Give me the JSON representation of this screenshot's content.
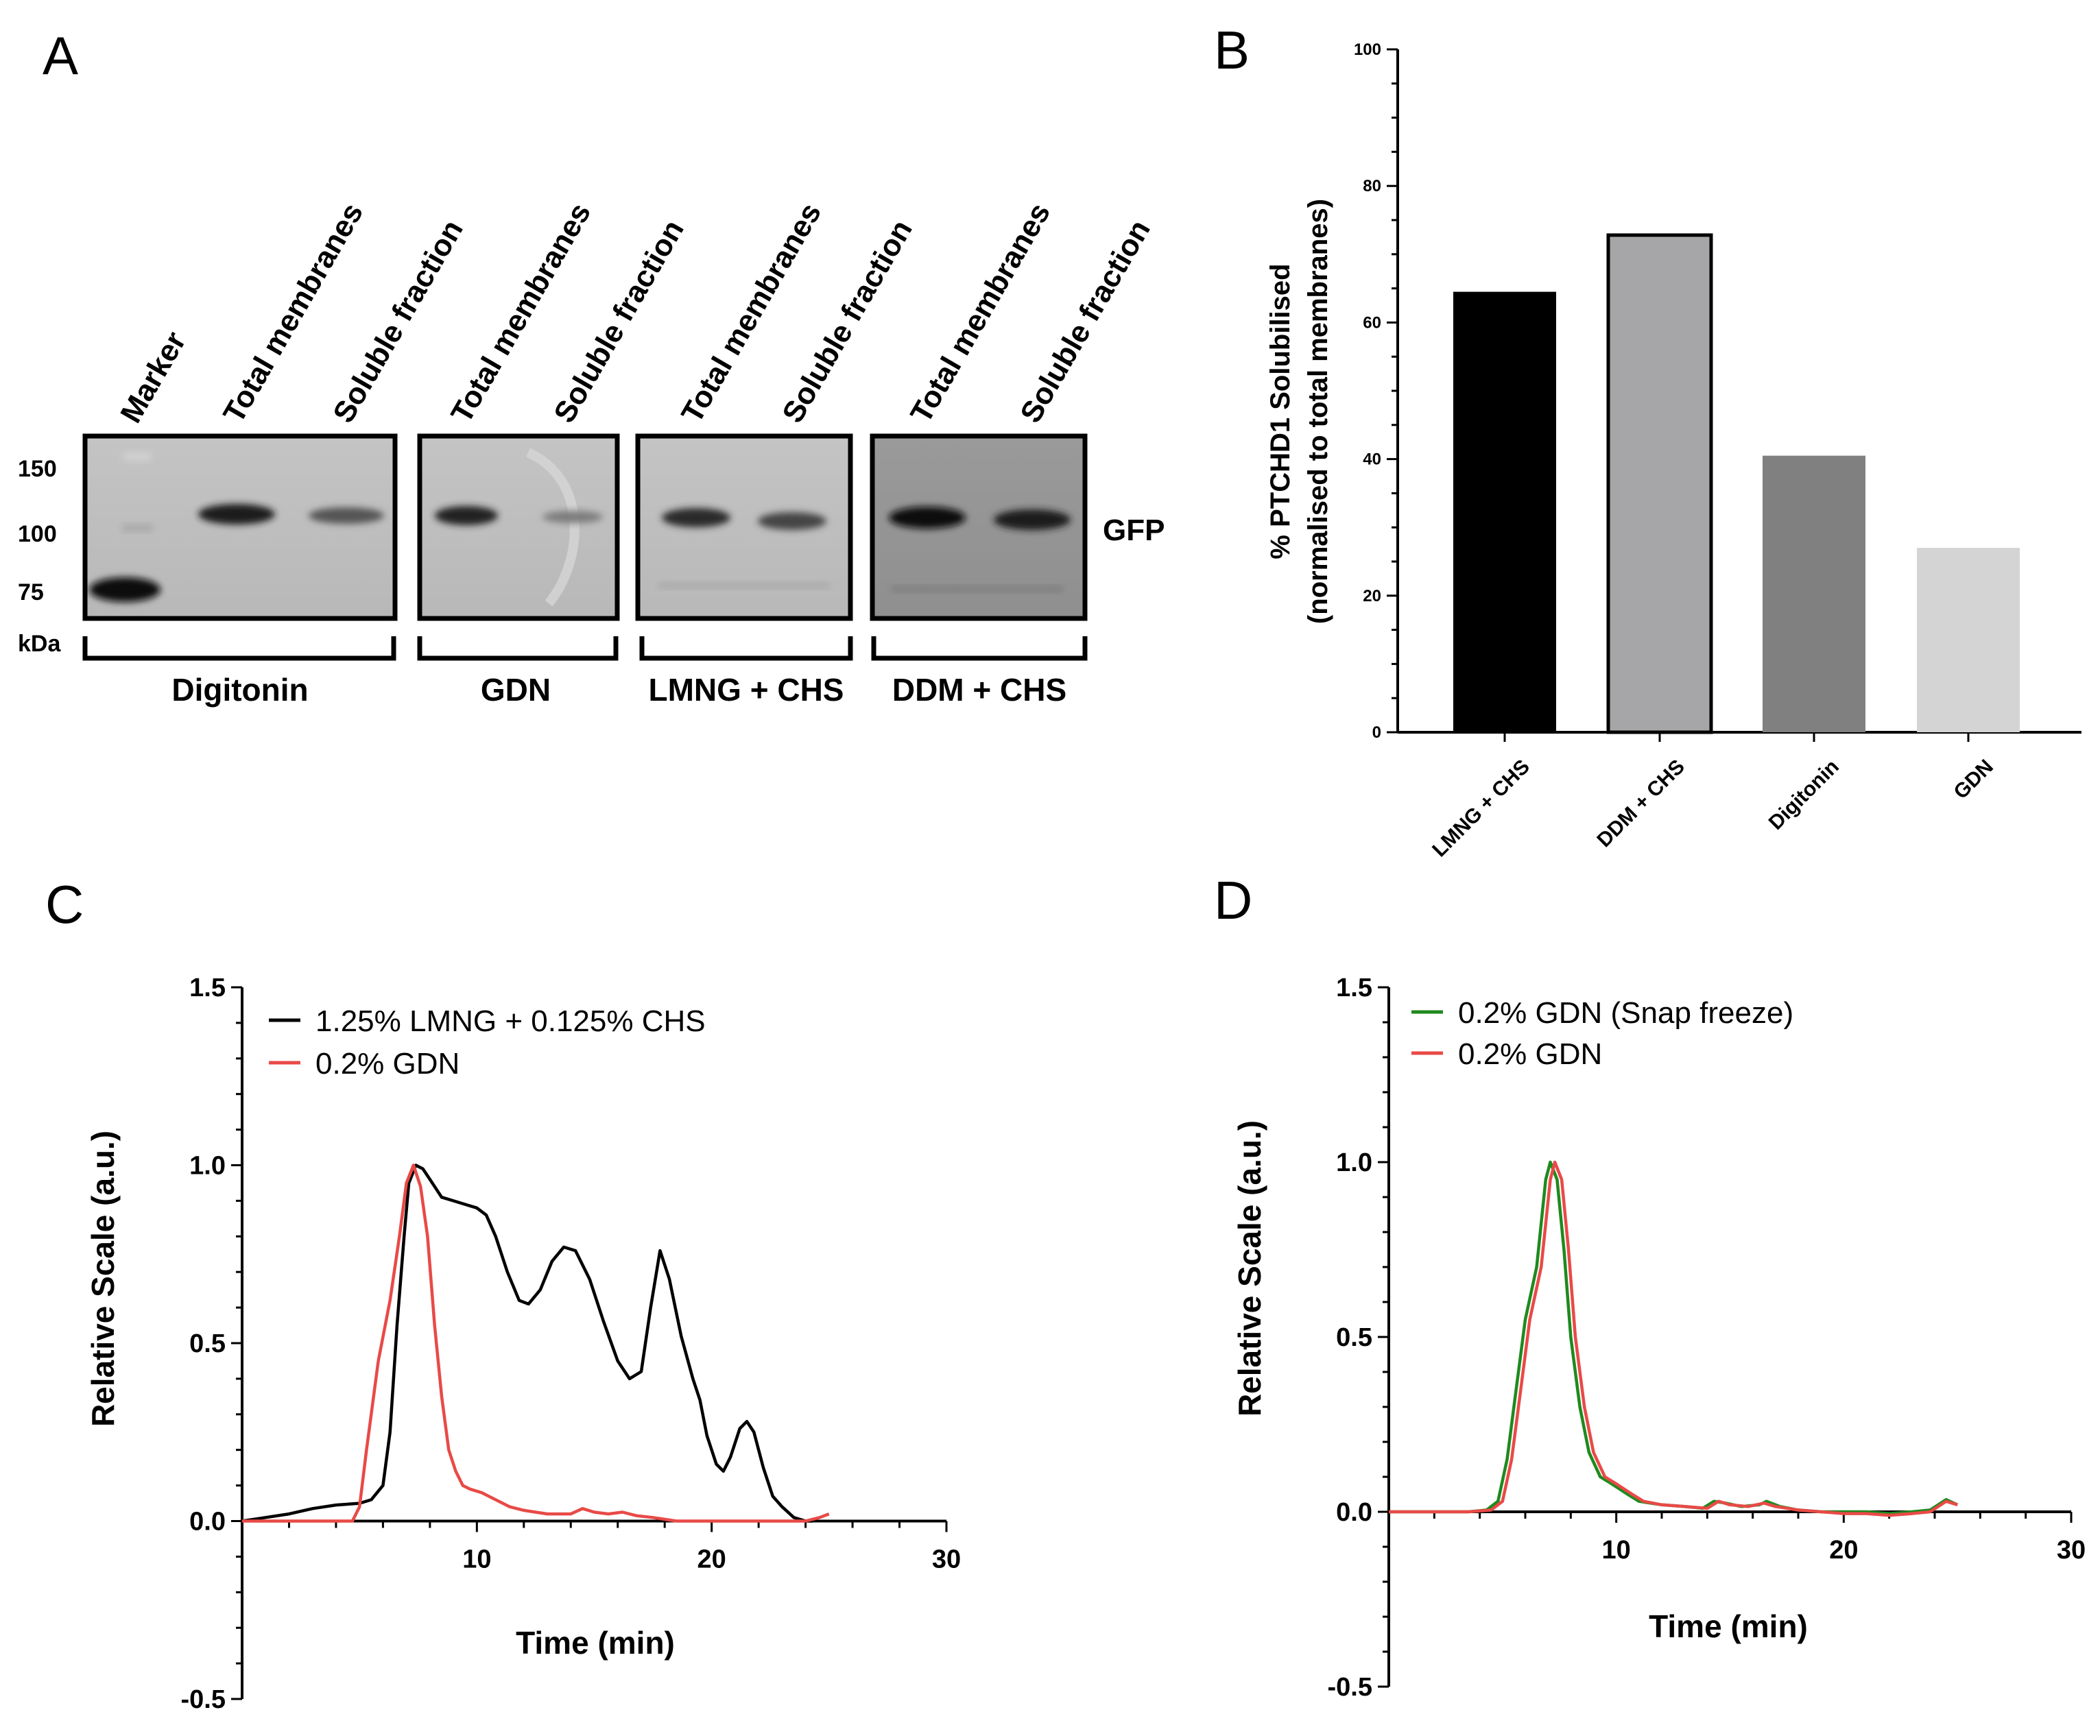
{
  "panels": {
    "a": {
      "letter": "A",
      "lanes": [
        "Marker",
        "Total membranes",
        "Soluble fraction",
        "Total membranes",
        "Soluble fraction",
        "Total membranes",
        "Soluble fraction",
        "Total membranes",
        "Soluble fraction"
      ],
      "markers": [
        "150",
        "100",
        "75"
      ],
      "unit": "kDa",
      "band_label": "GFP",
      "groups": [
        "Digitonin",
        "GDN",
        "LMNG + CHS",
        "DDM + CHS"
      ]
    },
    "b": {
      "letter": "B"
    },
    "c": {
      "letter": "C"
    },
    "d": {
      "letter": "D"
    }
  },
  "chart_data": [
    {
      "id": "B",
      "type": "bar",
      "categories": [
        "LMNG + CHS",
        "DDM + CHS",
        "Digitonin",
        "GDN"
      ],
      "values": [
        64.5,
        72.8,
        40.5,
        27
      ],
      "colors": [
        "#000000",
        "#a6a6a8",
        "#808080",
        "#d4d4d4"
      ],
      "ylabel_line1": "% PTCHD1 Solubilised",
      "ylabel_line2": "(normalised to total membranes)",
      "ylim": [
        0,
        100
      ],
      "yticks": [
        "0",
        "20",
        "40",
        "60",
        "80",
        "100"
      ]
    },
    {
      "id": "C",
      "type": "line",
      "xlabel": "Time (min)",
      "ylabel": "Relative Scale (a.u.)",
      "xlim": [
        0,
        30
      ],
      "ylim": [
        -0.5,
        1.5
      ],
      "xticks": [
        "10",
        "20",
        "30"
      ],
      "yticks": [
        "-0.5",
        "0.0",
        "0.5",
        "1.0",
        "1.5"
      ],
      "series": [
        {
          "name": "1.25% LMNG + 0.125% CHS",
          "color": "#000000",
          "points": [
            [
              0,
              0
            ],
            [
              1,
              0.01
            ],
            [
              2,
              0.02
            ],
            [
              3,
              0.035
            ],
            [
              4,
              0.045
            ],
            [
              5,
              0.05
            ],
            [
              5.5,
              0.06
            ],
            [
              6,
              0.1
            ],
            [
              6.3,
              0.25
            ],
            [
              6.6,
              0.55
            ],
            [
              6.9,
              0.8
            ],
            [
              7.1,
              0.95
            ],
            [
              7.4,
              1.0
            ],
            [
              7.7,
              0.99
            ],
            [
              8,
              0.96
            ],
            [
              8.5,
              0.91
            ],
            [
              9,
              0.9
            ],
            [
              9.5,
              0.89
            ],
            [
              10,
              0.88
            ],
            [
              10.4,
              0.86
            ],
            [
              10.8,
              0.8
            ],
            [
              11.3,
              0.7
            ],
            [
              11.8,
              0.62
            ],
            [
              12.2,
              0.61
            ],
            [
              12.7,
              0.65
            ],
            [
              13.2,
              0.73
            ],
            [
              13.7,
              0.77
            ],
            [
              14.2,
              0.76
            ],
            [
              14.8,
              0.68
            ],
            [
              15.4,
              0.56
            ],
            [
              16,
              0.45
            ],
            [
              16.5,
              0.4
            ],
            [
              17,
              0.42
            ],
            [
              17.4,
              0.6
            ],
            [
              17.8,
              0.76
            ],
            [
              18.2,
              0.68
            ],
            [
              18.7,
              0.52
            ],
            [
              19.2,
              0.4
            ],
            [
              19.5,
              0.34
            ],
            [
              19.8,
              0.24
            ],
            [
              20.2,
              0.16
            ],
            [
              20.5,
              0.14
            ],
            [
              20.8,
              0.18
            ],
            [
              21.2,
              0.26
            ],
            [
              21.5,
              0.28
            ],
            [
              21.8,
              0.25
            ],
            [
              22.2,
              0.15
            ],
            [
              22.6,
              0.07
            ],
            [
              23,
              0.04
            ],
            [
              23.5,
              0.01
            ],
            [
              24,
              0.0
            ],
            [
              24.3,
              0.0
            ]
          ]
        },
        {
          "name": "0.2% GDN",
          "color": "#e84a47",
          "points": [
            [
              0,
              0
            ],
            [
              2,
              0.0
            ],
            [
              4,
              0.0
            ],
            [
              4.7,
              0.0
            ],
            [
              5,
              0.04
            ],
            [
              5.3,
              0.2
            ],
            [
              5.8,
              0.45
            ],
            [
              6.3,
              0.62
            ],
            [
              6.7,
              0.8
            ],
            [
              7,
              0.95
            ],
            [
              7.3,
              1.0
            ],
            [
              7.6,
              0.94
            ],
            [
              7.9,
              0.8
            ],
            [
              8.2,
              0.55
            ],
            [
              8.5,
              0.35
            ],
            [
              8.8,
              0.2
            ],
            [
              9.1,
              0.14
            ],
            [
              9.4,
              0.1
            ],
            [
              9.7,
              0.09
            ],
            [
              10.2,
              0.08
            ],
            [
              10.8,
              0.06
            ],
            [
              11.4,
              0.04
            ],
            [
              12,
              0.03
            ],
            [
              13,
              0.02
            ],
            [
              14,
              0.02
            ],
            [
              14.5,
              0.035
            ],
            [
              15,
              0.025
            ],
            [
              15.6,
              0.02
            ],
            [
              16.2,
              0.025
            ],
            [
              16.8,
              0.015
            ],
            [
              17.5,
              0.01
            ],
            [
              18.5,
              0.0
            ],
            [
              19.5,
              0.0
            ],
            [
              21,
              0.0
            ],
            [
              22,
              0.0
            ],
            [
              23,
              0.0
            ],
            [
              24,
              0.0
            ],
            [
              24.6,
              0.01
            ],
            [
              25,
              0.02
            ]
          ]
        }
      ]
    },
    {
      "id": "D",
      "type": "line",
      "xlabel": "Time (min)",
      "ylabel": "Relative Scale (a.u.)",
      "xlim": [
        0,
        30
      ],
      "ylim": [
        -0.5,
        1.5
      ],
      "xticks": [
        "10",
        "20",
        "30"
      ],
      "yticks": [
        "-0.5",
        "0.0",
        "0.5",
        "1.0",
        "1.5"
      ],
      "series": [
        {
          "name": "0.2% GDN (Snap freeze)",
          "color": "#1e8a1e",
          "points": [
            [
              0,
              0
            ],
            [
              2,
              0.0
            ],
            [
              3.5,
              0.0
            ],
            [
              4.3,
              0.005
            ],
            [
              4.8,
              0.03
            ],
            [
              5.2,
              0.15
            ],
            [
              5.6,
              0.35
            ],
            [
              6,
              0.55
            ],
            [
              6.5,
              0.7
            ],
            [
              6.9,
              0.95
            ],
            [
              7.1,
              1.0
            ],
            [
              7.4,
              0.95
            ],
            [
              7.7,
              0.75
            ],
            [
              8,
              0.5
            ],
            [
              8.4,
              0.3
            ],
            [
              8.8,
              0.17
            ],
            [
              9.3,
              0.1
            ],
            [
              9.8,
              0.08
            ],
            [
              10.5,
              0.05
            ],
            [
              11,
              0.03
            ],
            [
              12,
              0.02
            ],
            [
              13,
              0.015
            ],
            [
              13.8,
              0.01
            ],
            [
              14.3,
              0.03
            ],
            [
              14.8,
              0.025
            ],
            [
              15.5,
              0.015
            ],
            [
              16.3,
              0.02
            ],
            [
              16.6,
              0.03
            ],
            [
              17.2,
              0.015
            ],
            [
              18,
              0.005
            ],
            [
              19,
              0.0
            ],
            [
              20,
              0.0
            ],
            [
              21,
              0.0
            ],
            [
              22,
              -0.005
            ],
            [
              23,
              0.0
            ],
            [
              23.8,
              0.005
            ],
            [
              24.5,
              0.035
            ],
            [
              25,
              0.02
            ]
          ]
        },
        {
          "name": "0.2% GDN",
          "color": "#e84a47",
          "points": [
            [
              0,
              0
            ],
            [
              2,
              0.0
            ],
            [
              3.5,
              0.0
            ],
            [
              4.5,
              0.005
            ],
            [
              5,
              0.03
            ],
            [
              5.4,
              0.15
            ],
            [
              5.8,
              0.35
            ],
            [
              6.2,
              0.55
            ],
            [
              6.7,
              0.7
            ],
            [
              7.1,
              0.95
            ],
            [
              7.3,
              1.0
            ],
            [
              7.6,
              0.95
            ],
            [
              7.9,
              0.75
            ],
            [
              8.2,
              0.5
            ],
            [
              8.6,
              0.3
            ],
            [
              9,
              0.17
            ],
            [
              9.5,
              0.1
            ],
            [
              10,
              0.08
            ],
            [
              10.7,
              0.05
            ],
            [
              11.2,
              0.03
            ],
            [
              12,
              0.02
            ],
            [
              13,
              0.015
            ],
            [
              14,
              0.01
            ],
            [
              14.5,
              0.03
            ],
            [
              15,
              0.02
            ],
            [
              15.8,
              0.015
            ],
            [
              16.5,
              0.025
            ],
            [
              17,
              0.015
            ],
            [
              18,
              0.005
            ],
            [
              19,
              0.0
            ],
            [
              20,
              -0.005
            ],
            [
              21,
              -0.005
            ],
            [
              22,
              -0.01
            ],
            [
              23,
              -0.005
            ],
            [
              23.8,
              0.0
            ],
            [
              24.5,
              0.03
            ],
            [
              25,
              0.02
            ]
          ]
        }
      ]
    }
  ]
}
